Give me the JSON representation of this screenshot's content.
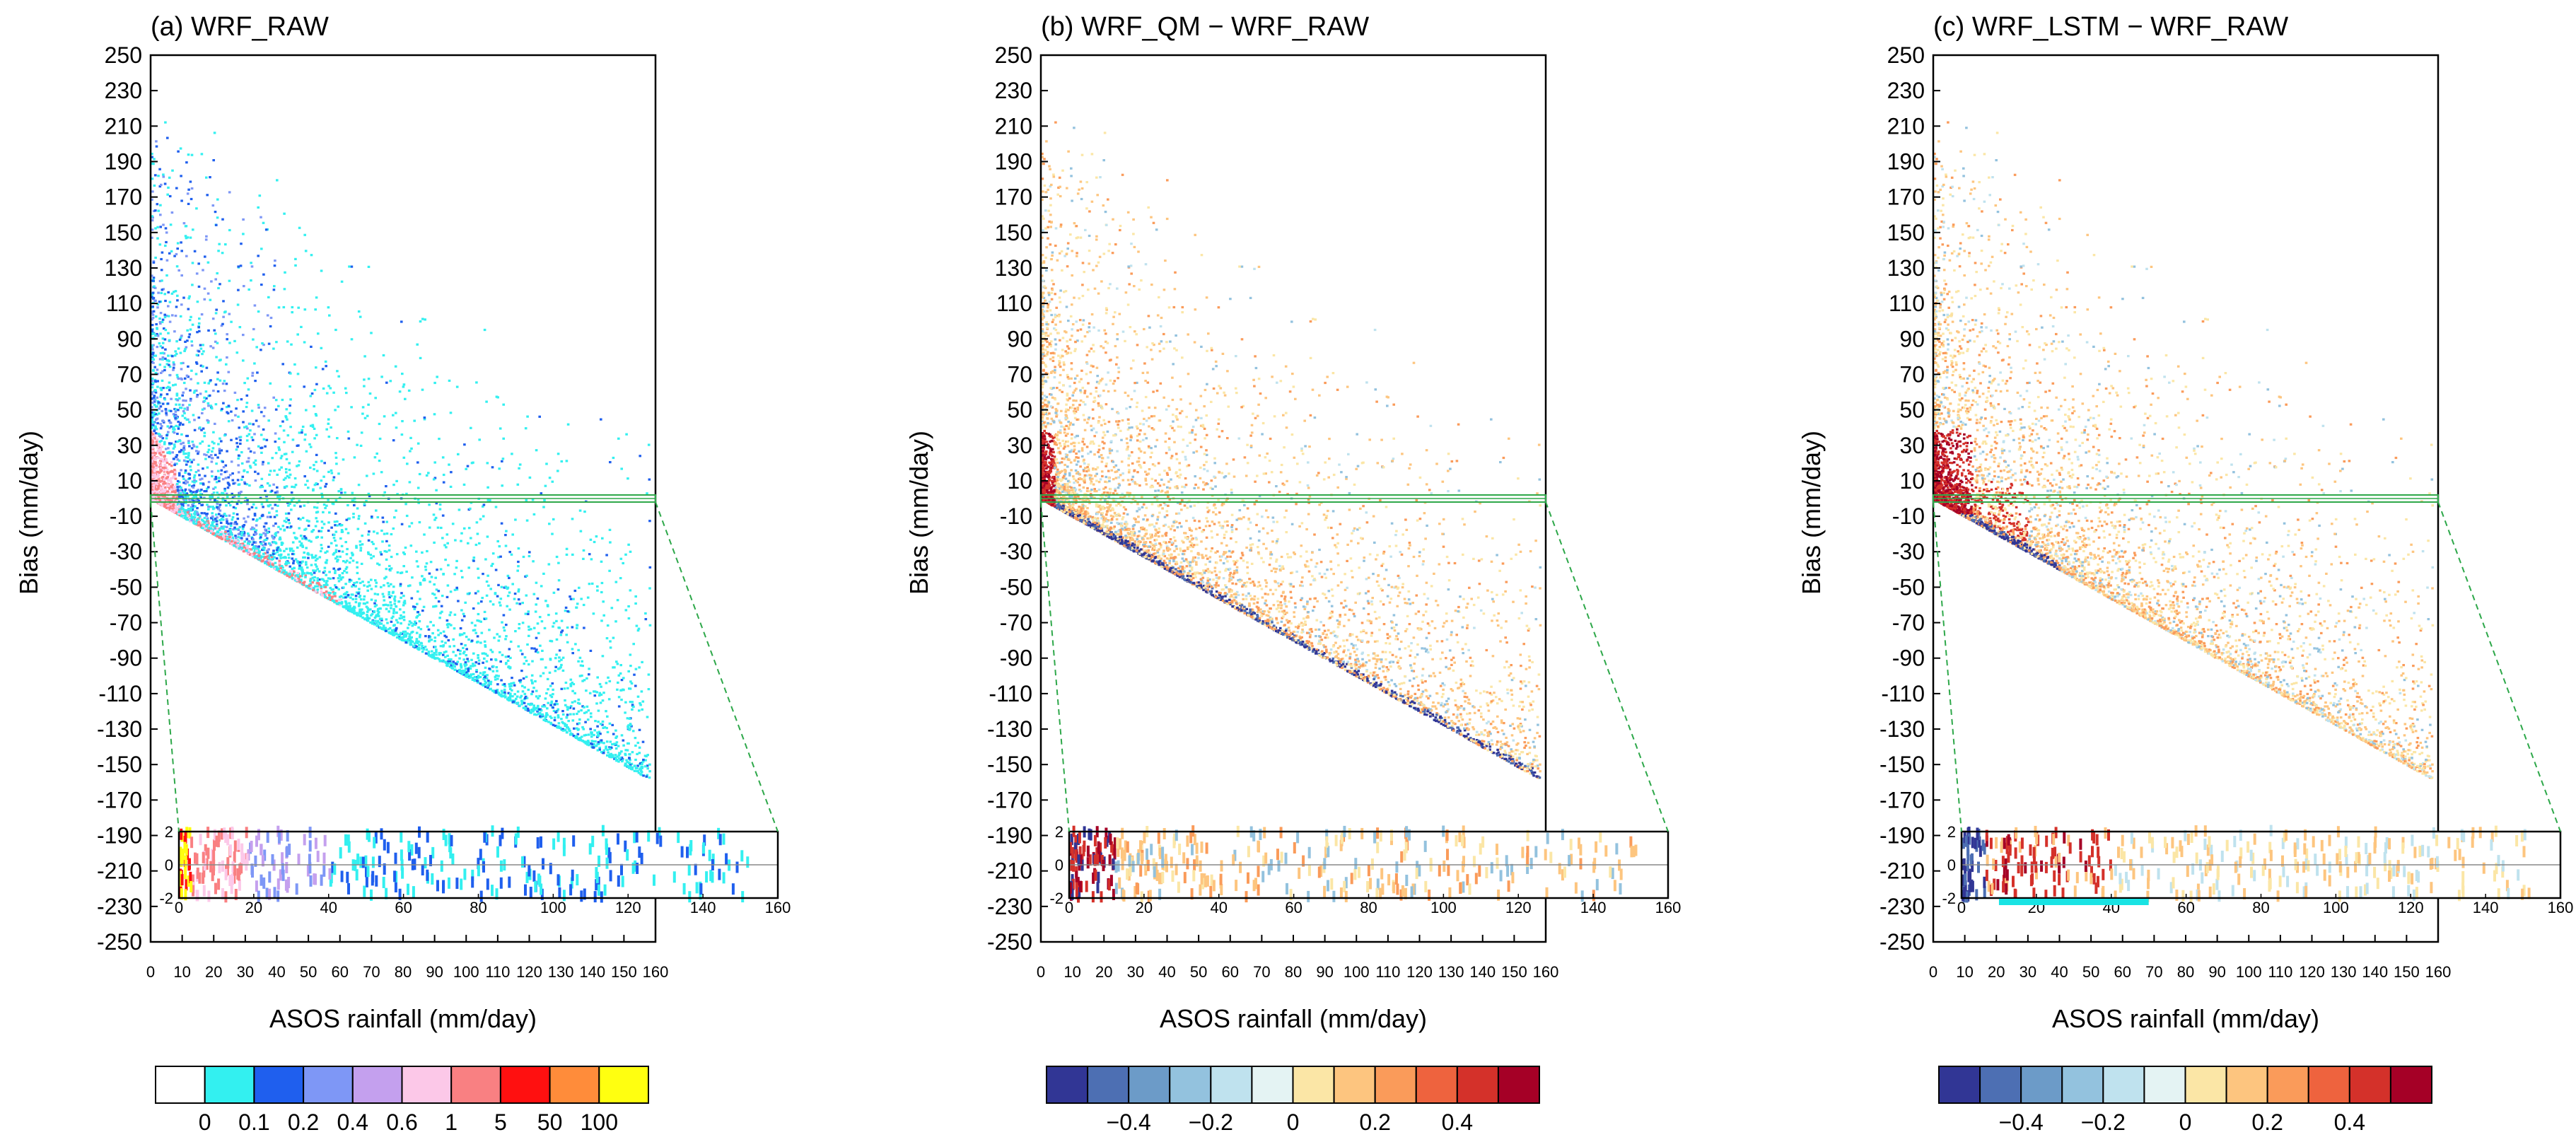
{
  "chart_data": [
    {
      "type": "heatmap",
      "panel": "a",
      "title": "(a) WRF_RAW",
      "xlabel": "ASOS rainfall (mm/day)",
      "ylabel": "Bias (mm/day)",
      "xlim": [
        0,
        160
      ],
      "ylim": [
        -250,
        250
      ],
      "x_ticks": [
        0,
        10,
        20,
        30,
        40,
        50,
        60,
        70,
        80,
        90,
        100,
        110,
        120,
        130,
        140,
        150,
        160
      ],
      "y_ticks": [
        250,
        230,
        210,
        190,
        170,
        150,
        130,
        110,
        90,
        70,
        50,
        30,
        10,
        -10,
        -30,
        -50,
        -70,
        -90,
        -110,
        -130,
        -150,
        -170,
        -190,
        -210,
        -230,
        -250
      ],
      "inset": {
        "xlim": [
          0,
          160
        ],
        "ylim": [
          -2,
          2
        ],
        "x_ticks": [
          0,
          20,
          40,
          60,
          80,
          100,
          120,
          140,
          160
        ],
        "y_ticks": [
          2,
          0,
          -2
        ]
      },
      "zoom_band": [
        -2,
        2
      ],
      "colorbar": {
        "type": "categorical",
        "labels": [
          "0",
          "0.1",
          "0.2",
          "0.4",
          "0.6",
          "1",
          "5",
          "50",
          "100"
        ],
        "colors": [
          "#ffffff",
          "#33f0f0",
          "#1f5fee",
          "#7e97f6",
          "#c4a0ee",
          "#fcc8e8",
          "#f98082",
          "#ff1010",
          "#ff8c3a",
          "#ffff10"
        ]
      }
    },
    {
      "type": "heatmap",
      "panel": "b",
      "title": "(b) WRF_QM − WRF_RAW",
      "xlabel": "ASOS rainfall (mm/day)",
      "ylabel": "Bias (mm/day)",
      "xlim": [
        0,
        160
      ],
      "ylim": [
        -250,
        250
      ],
      "x_ticks": [
        0,
        10,
        20,
        30,
        40,
        50,
        60,
        70,
        80,
        90,
        100,
        110,
        120,
        130,
        140,
        150,
        160
      ],
      "y_ticks": [
        250,
        230,
        210,
        190,
        170,
        150,
        130,
        110,
        90,
        70,
        50,
        30,
        10,
        -10,
        -30,
        -50,
        -70,
        -90,
        -110,
        -130,
        -150,
        -170,
        -190,
        -210,
        -230,
        -250
      ],
      "inset": {
        "xlim": [
          0,
          160
        ],
        "ylim": [
          -2,
          2
        ],
        "x_ticks": [
          0,
          20,
          40,
          60,
          80,
          100,
          120,
          140,
          160
        ],
        "y_ticks": [
          2,
          0,
          -2
        ]
      },
      "zoom_band": [
        -2,
        2
      ],
      "colorbar": {
        "type": "diverging",
        "labels": [
          "−0.4",
          "−0.2",
          "0",
          "0.2",
          "0.4"
        ],
        "colors": [
          "#313695",
          "#4d6fb3",
          "#6c9bc8",
          "#93c2de",
          "#bfe2ee",
          "#e4f3f3",
          "#fbe6a6",
          "#fdc57f",
          "#fa9b5a",
          "#ee633e",
          "#d4312a",
          "#a50026"
        ]
      }
    },
    {
      "type": "heatmap",
      "panel": "c",
      "title": "(c) WRF_LSTM − WRF_RAW",
      "xlabel": "ASOS rainfall (mm/day)",
      "ylabel": "Bias (mm/day)",
      "xlim": [
        0,
        160
      ],
      "ylim": [
        -250,
        250
      ],
      "x_ticks": [
        0,
        10,
        20,
        30,
        40,
        50,
        60,
        70,
        80,
        90,
        100,
        110,
        120,
        130,
        140,
        150,
        160
      ],
      "y_ticks": [
        250,
        230,
        210,
        190,
        170,
        150,
        130,
        110,
        90,
        70,
        50,
        30,
        10,
        -10,
        -30,
        -50,
        -70,
        -90,
        -110,
        -130,
        -150,
        -170,
        -190,
        -210,
        -230,
        -250
      ],
      "inset": {
        "xlim": [
          0,
          160
        ],
        "ylim": [
          -2,
          2
        ],
        "x_ticks": [
          0,
          20,
          40,
          60,
          80,
          100,
          120,
          140,
          160
        ],
        "y_ticks": [
          2,
          0,
          -2
        ]
      },
      "zoom_band": [
        -2,
        2
      ],
      "inset_highlight_x": [
        10,
        50
      ],
      "colorbar": {
        "type": "diverging",
        "labels": [
          "−0.4",
          "−0.2",
          "0",
          "0.2",
          "0.4"
        ],
        "colors": [
          "#313695",
          "#4d6fb3",
          "#6c9bc8",
          "#93c2de",
          "#bfe2ee",
          "#e4f3f3",
          "#fbe6a6",
          "#fdc57f",
          "#fa9b5a",
          "#ee633e",
          "#d4312a",
          "#a50026"
        ]
      }
    }
  ]
}
